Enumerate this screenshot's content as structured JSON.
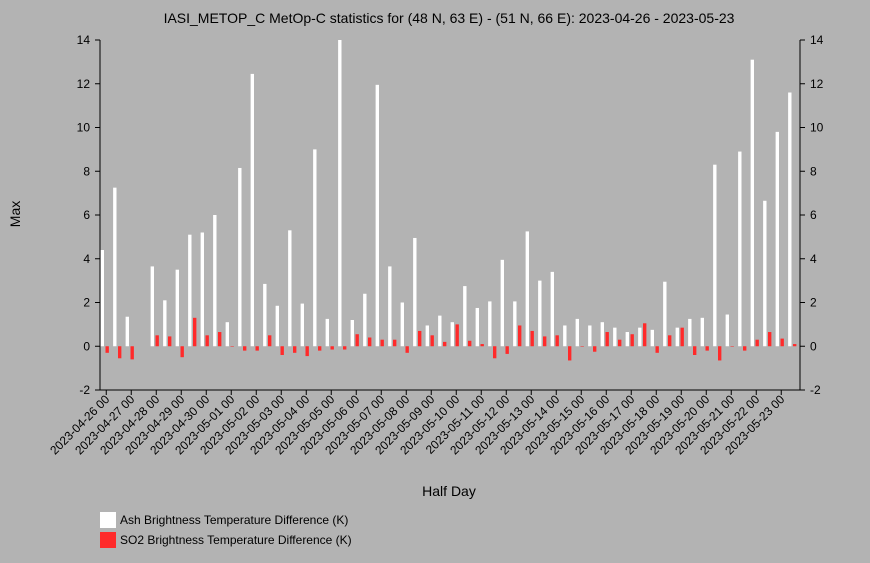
{
  "chart_data": {
    "type": "bar",
    "title": "IASI_METOP_C MetOp-C statistics for (48 N, 63 E) - (51 N, 66 E): 2023-04-26 - 2023-05-23",
    "xlabel": "Half Day",
    "ylabel": "Max",
    "ylim": [
      -2,
      14
    ],
    "yticks": [
      "-2",
      "0",
      "2",
      "4",
      "6",
      "8",
      "10",
      "12",
      "14"
    ],
    "grid": false,
    "legend_position": "bottom-left",
    "xtick_labels": [
      "2023-04-26 00",
      "2023-04-27 00",
      "2023-04-28 00",
      "2023-04-29 00",
      "2023-04-30 00",
      "2023-05-01 00",
      "2023-05-02 00",
      "2023-05-03 00",
      "2023-05-04 00",
      "2023-05-05 00",
      "2023-05-06 00",
      "2023-05-07 00",
      "2023-05-08 00",
      "2023-05-09 00",
      "2023-05-10 00",
      "2023-05-11 00",
      "2023-05-12 00",
      "2023-05-13 00",
      "2023-05-14 00",
      "2023-05-15 00",
      "2023-05-16 00",
      "2023-05-17 00",
      "2023-05-18 00",
      "2023-05-19 00",
      "2023-05-20 00",
      "2023-05-21 00",
      "2023-05-22 00",
      "2023-05-23 00"
    ],
    "series": [
      {
        "name": "Ash Brightness Temperature Difference (K)",
        "color": "#ffffff",
        "values": [
          4.4,
          7.25,
          1.35,
          null,
          3.65,
          2.1,
          3.5,
          5.1,
          5.2,
          6.0,
          1.1,
          8.15,
          12.45,
          2.85,
          1.85,
          5.3,
          1.95,
          9.0,
          1.25,
          14.0,
          1.2,
          2.4,
          11.95,
          3.65,
          2.0,
          4.95,
          0.95,
          1.4,
          1.1,
          2.75,
          1.75,
          2.05,
          3.95,
          2.05,
          5.25,
          3.0,
          3.4,
          0.95,
          1.25,
          0.95,
          1.1,
          0.85,
          0.65,
          0.85,
          0.75,
          2.95,
          0.85,
          1.25,
          1.3,
          8.3,
          1.45,
          8.9,
          13.1,
          6.65,
          9.8,
          11.6
        ]
      },
      {
        "name": "SO2 Brightness Temperature Difference (K)",
        "color": "#ff2a2a",
        "values": [
          -0.3,
          -0.55,
          -0.6,
          null,
          0.5,
          0.45,
          -0.5,
          1.3,
          0.5,
          0.65,
          0.0,
          -0.2,
          -0.2,
          0.5,
          -0.4,
          -0.3,
          -0.45,
          -0.2,
          -0.15,
          -0.15,
          0.55,
          0.4,
          0.3,
          0.3,
          -0.3,
          0.7,
          0.5,
          0.2,
          1.0,
          0.25,
          0.1,
          -0.55,
          -0.35,
          0.95,
          0.7,
          0.45,
          0.5,
          -0.65,
          0.0,
          -0.25,
          0.65,
          0.3,
          0.55,
          1.05,
          -0.3,
          0.5,
          0.85,
          -0.4,
          -0.2,
          -0.65,
          0.0,
          -0.2,
          0.3,
          0.65,
          0.35,
          0.1
        ]
      }
    ]
  }
}
